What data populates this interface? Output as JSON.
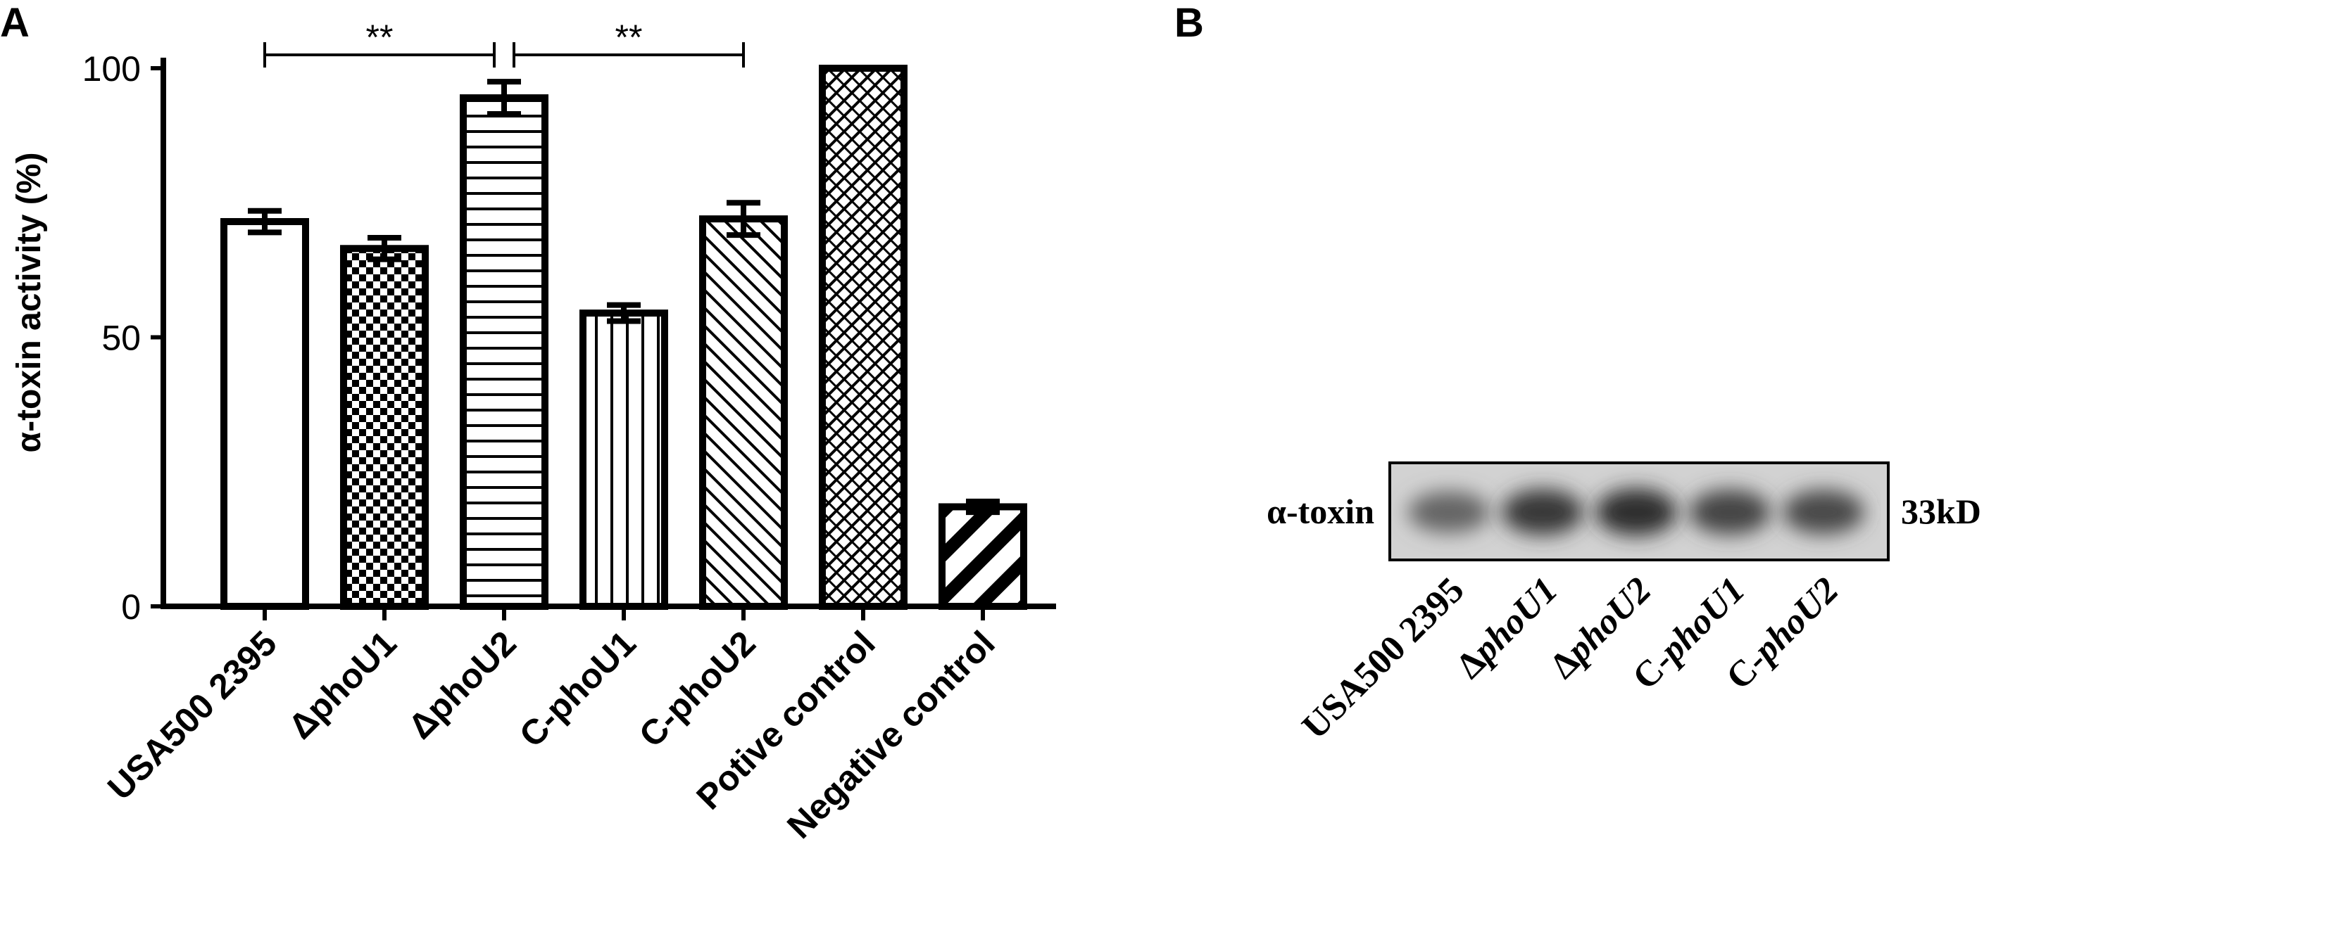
{
  "panels": {
    "a_label": "A",
    "b_label": "B"
  },
  "chart_data": {
    "type": "bar",
    "ylabel": "α-toxin activity (%)",
    "xlabel": "",
    "ylim": [
      0,
      100
    ],
    "yticks": [
      "0",
      "50",
      "100"
    ],
    "categories": [
      "USA500 2395",
      "ΔphoU1",
      "ΔphoU2",
      "C-phoU1",
      "C-phoU2",
      "Potive control",
      "Negative control"
    ],
    "values": [
      71.5,
      66.5,
      94.5,
      54.5,
      72.0,
      100,
      18.5
    ],
    "errors": [
      2.0,
      2.0,
      3.0,
      1.5,
      3.0,
      0,
      1.0
    ],
    "patterns": [
      "none",
      "checker",
      "horizontal",
      "vertical",
      "diagonal",
      "crosshatch",
      "thickdiag"
    ],
    "significance": [
      {
        "from": 0,
        "to": 2,
        "label": "**"
      },
      {
        "from": 2,
        "to": 4,
        "label": "**"
      }
    ]
  },
  "blot": {
    "row_label": "α-toxin",
    "size_label": "33kD",
    "lanes": [
      {
        "prefix": "",
        "italic": "",
        "text": "USA500 2395",
        "intensity": 0.45
      },
      {
        "prefix": "Δ",
        "italic": "phoU1",
        "text": "",
        "intensity": 0.85
      },
      {
        "prefix": "Δ",
        "italic": "phoU2",
        "text": "",
        "intensity": 0.95
      },
      {
        "prefix": "C-",
        "italic": "phoU1",
        "text": "",
        "intensity": 0.75
      },
      {
        "prefix": "C-",
        "italic": "phoU2",
        "text": "",
        "intensity": 0.7
      }
    ]
  }
}
